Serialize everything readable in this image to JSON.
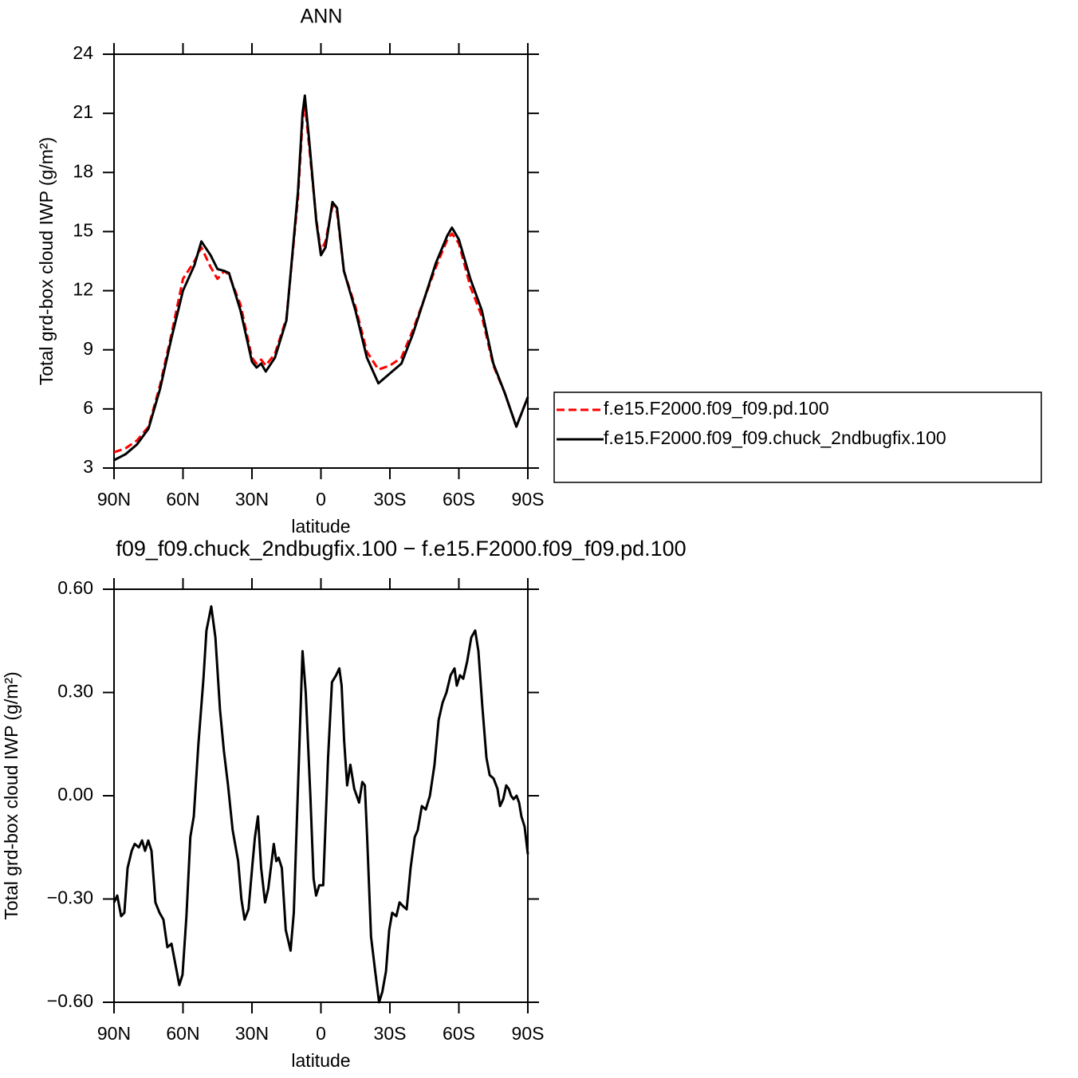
{
  "chart_data": [
    {
      "type": "line",
      "title": "ANN",
      "xlabel": "latitude",
      "ylabel": "Total grd-box cloud IWP (g/m²)",
      "xlim": [
        90,
        -90
      ],
      "xticks": [
        {
          "value": 90,
          "label": "90N"
        },
        {
          "value": 60,
          "label": "60N"
        },
        {
          "value": 30,
          "label": "30N"
        },
        0,
        {
          "value": -30,
          "label": "30S"
        },
        {
          "value": -60,
          "label": "60S"
        },
        {
          "value": -90,
          "label": "90S"
        }
      ],
      "ylim": [
        3,
        24
      ],
      "yticks": [
        3,
        6,
        9,
        12,
        15,
        18,
        21,
        24
      ],
      "legend": "outside-right",
      "x": [
        90,
        85,
        80,
        75,
        70,
        65,
        60,
        55,
        52,
        48,
        45,
        42,
        40,
        35,
        30,
        28,
        26,
        24,
        20,
        15,
        10,
        8,
        7,
        5,
        2,
        0,
        -2,
        -5,
        -7,
        -10,
        -13,
        -15,
        -20,
        -25,
        -30,
        -35,
        -40,
        -45,
        -50,
        -55,
        -57,
        -60,
        -65,
        -70,
        -75,
        -80,
        -85,
        -90
      ],
      "series": [
        {
          "name": "f.e15.F2000.f09_f09.pd.100",
          "color": "#ff0000",
          "style": "dashed",
          "values": [
            3.8,
            4.0,
            4.4,
            5.1,
            7.2,
            9.8,
            12.6,
            13.5,
            14.2,
            13.2,
            12.6,
            13.0,
            12.8,
            11.3,
            8.6,
            8.3,
            8.5,
            8.2,
            8.8,
            10.6,
            16.7,
            20.6,
            21.5,
            19.2,
            15.6,
            14.0,
            14.5,
            16.3,
            16.0,
            13.0,
            11.9,
            11.2,
            8.9,
            8.0,
            8.2,
            8.6,
            10.0,
            11.6,
            13.2,
            14.6,
            14.9,
            14.4,
            12.2,
            10.7,
            8.2,
            6.8,
            5.1,
            6.6
          ]
        },
        {
          "name": "f.e15.F2000.f09_f09.chuck_2ndbugfix.100",
          "color": "#000000",
          "style": "solid",
          "values": [
            3.4,
            3.7,
            4.2,
            5.0,
            7.0,
            9.6,
            12.0,
            13.3,
            14.5,
            13.8,
            13.1,
            13.0,
            12.9,
            11.0,
            8.4,
            8.1,
            8.3,
            7.9,
            8.6,
            10.5,
            17.0,
            21.0,
            21.9,
            19.5,
            15.5,
            13.8,
            14.2,
            16.5,
            16.2,
            13.0,
            11.8,
            11.0,
            8.6,
            7.3,
            7.8,
            8.3,
            9.8,
            11.6,
            13.4,
            14.8,
            15.2,
            14.6,
            12.6,
            11.0,
            8.3,
            6.8,
            5.1,
            6.6
          ]
        }
      ]
    },
    {
      "type": "line",
      "title": "f09_f09.chuck_2ndbugfix.100 − f.e15.F2000.f09_f09.pd.100",
      "xlabel": "latitude",
      "ylabel": "Total grd-box cloud IWP (g/m²)",
      "xlim": [
        90,
        -90
      ],
      "xticks": [
        {
          "value": 90,
          "label": "90N"
        },
        {
          "value": 60,
          "label": "60N"
        },
        {
          "value": 30,
          "label": "30N"
        },
        0,
        {
          "value": -30,
          "label": "30S"
        },
        {
          "value": -60,
          "label": "60S"
        },
        {
          "value": -90,
          "label": "90S"
        }
      ],
      "ylim": [
        -0.6,
        0.6
      ],
      "yticks": [
        {
          "value": -0.6,
          "label": "−0.60"
        },
        {
          "value": -0.3,
          "label": "−0.30"
        },
        {
          "value": 0,
          "label": "0.00"
        },
        {
          "value": 0.3,
          "label": "0.30"
        },
        {
          "value": 0.6,
          "label": "0.60"
        }
      ],
      "color": "#000000",
      "x": [
        90,
        88.6,
        86.9,
        85.5,
        84.1,
        82.3,
        81.0,
        79.2,
        77.8,
        76.5,
        75.1,
        73.7,
        72.0,
        70.2,
        68.5,
        66.8,
        65.0,
        63.3,
        61.6,
        60.2,
        58.5,
        56.8,
        55.3,
        53.3,
        51.1,
        49.8,
        47.7,
        45.9,
        43.9,
        42.2,
        40.4,
        38.4,
        36.0,
        34.6,
        33.2,
        31.5,
        29.8,
        28.7,
        27.4,
        26.0,
        24.3,
        22.9,
        20.5,
        19.4,
        18.4,
        17.0,
        15.3,
        13.2,
        11.8,
        10.1,
        8.0,
        6.6,
        4.6,
        3.2,
        2.1,
        0.7,
        -1.0,
        -3.1,
        -4.8,
        -6.6,
        -8.0,
        -9.0,
        -10.1,
        -11.4,
        -12.8,
        -14.5,
        -16.6,
        -18.0,
        -19.1,
        -20.1,
        -21.8,
        -23.6,
        -25.3,
        -26.7,
        -28.3,
        -29.7,
        -31.0,
        -32.8,
        -34.2,
        -35.6,
        -37.3,
        -39.0,
        -40.8,
        -42.1,
        -43.9,
        -45.6,
        -47.4,
        -49.4,
        -51.2,
        -52.9,
        -54.6,
        -56.4,
        -58.1,
        -59.1,
        -60.5,
        -61.9,
        -63.6,
        -65.4,
        -67.1,
        -68.5,
        -70.2,
        -72.0,
        -73.4,
        -75.1,
        -76.8,
        -77.9,
        -79.3,
        -80.6,
        -81.7,
        -82.7,
        -83.8,
        -85.1,
        -86.2,
        -87.2,
        -88.6,
        -90
      ],
      "values": [
        -0.31,
        -0.29,
        -0.35,
        -0.34,
        -0.21,
        -0.16,
        -0.14,
        -0.15,
        -0.13,
        -0.16,
        -0.13,
        -0.16,
        -0.31,
        -0.34,
        -0.36,
        -0.44,
        -0.43,
        -0.49,
        -0.55,
        -0.52,
        -0.35,
        -0.12,
        -0.06,
        0.15,
        0.34,
        0.48,
        0.55,
        0.46,
        0.25,
        0.13,
        0.03,
        -0.1,
        -0.19,
        -0.3,
        -0.36,
        -0.33,
        -0.2,
        -0.12,
        -0.06,
        -0.21,
        -0.31,
        -0.27,
        -0.14,
        -0.19,
        -0.18,
        -0.21,
        -0.39,
        -0.45,
        -0.34,
        0.0,
        0.42,
        0.3,
        0.0,
        -0.24,
        -0.29,
        -0.26,
        -0.26,
        0.11,
        0.33,
        0.35,
        0.37,
        0.32,
        0.16,
        0.03,
        0.09,
        0.02,
        -0.02,
        0.04,
        0.03,
        -0.12,
        -0.41,
        -0.51,
        -0.6,
        -0.57,
        -0.51,
        -0.39,
        -0.34,
        -0.35,
        -0.31,
        -0.32,
        -0.33,
        -0.21,
        -0.12,
        -0.1,
        -0.03,
        -0.04,
        0.0,
        0.09,
        0.22,
        0.27,
        0.3,
        0.35,
        0.37,
        0.32,
        0.35,
        0.34,
        0.39,
        0.46,
        0.48,
        0.42,
        0.26,
        0.11,
        0.06,
        0.05,
        0.02,
        -0.03,
        -0.01,
        0.03,
        0.02,
        0.0,
        -0.01,
        0.0,
        -0.02,
        -0.06,
        -0.09,
        -0.17
      ]
    }
  ]
}
